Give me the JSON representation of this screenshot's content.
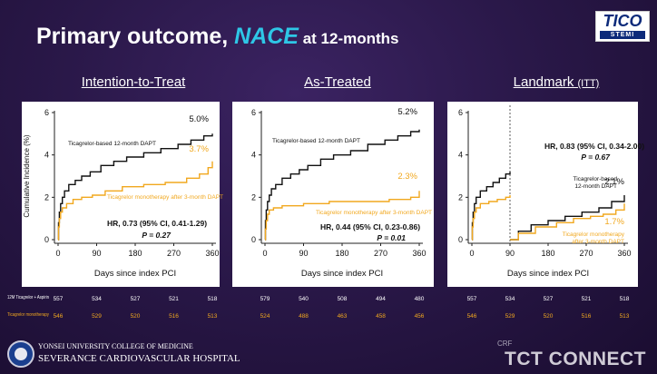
{
  "slide": {
    "title_main": "Primary outcome, ",
    "title_accent": "NACE",
    "title_suffix": " at 12-months",
    "logo_line1": "TICO",
    "logo_line2": "STEMI"
  },
  "panels": [
    {
      "title": "Intention-to-Treat",
      "subtitle": ""
    },
    {
      "title": "As-Treated",
      "subtitle": ""
    },
    {
      "title": "Landmark ",
      "subtitle": "(ITT)"
    }
  ],
  "colors": {
    "dapt": "#ffffff",
    "mono": "#f1a81f",
    "background": "#2a1849",
    "plot_bg": "#ffffff"
  },
  "footer": {
    "univ": "YONSEI UNIVERSITY COLLEGE OF MEDICINE",
    "hospital": "SEVERANCE CARDIOVASCULAR HOSPITAL",
    "crf": "CRF",
    "brand": "TCT CONNECT"
  },
  "risk_table": {
    "rows": [
      {
        "label": "12M Ticagrelor + Aspirin",
        "color": "#ffffff",
        "panels": [
          [
            "557",
            "534",
            "527",
            "521",
            "518"
          ],
          [
            "579",
            "540",
            "508",
            "494",
            "480"
          ],
          [
            "557",
            "534",
            "527",
            "521",
            "518"
          ]
        ]
      },
      {
        "label": "Ticagrelor monotherapy",
        "color": "#f1a81f",
        "panels": [
          [
            "546",
            "529",
            "520",
            "516",
            "513"
          ],
          [
            "524",
            "488",
            "463",
            "458",
            "456"
          ],
          [
            "546",
            "529",
            "520",
            "516",
            "513"
          ]
        ]
      }
    ]
  },
  "chart_data": [
    {
      "type": "line",
      "title": "Intention-to-Treat",
      "xlabel": "Days since index PCI",
      "ylabel": "Cumulative Incidence (%)",
      "xlim": [
        0,
        360
      ],
      "ylim": [
        0,
        6
      ],
      "xticks": [
        0,
        90,
        180,
        270,
        360
      ],
      "yticks": [
        0,
        2,
        4,
        6
      ],
      "series": [
        {
          "name": "Ticagrelor-based 12-month DAPT",
          "color": "#ffffff",
          "end_label": "5.0%",
          "x": [
            0,
            1,
            3,
            6,
            10,
            15,
            25,
            40,
            55,
            75,
            100,
            130,
            160,
            200,
            240,
            280,
            310,
            340,
            360
          ],
          "y": [
            0,
            0.8,
            1.3,
            1.7,
            2.0,
            2.3,
            2.6,
            2.8,
            3.0,
            3.2,
            3.5,
            3.7,
            3.9,
            4.1,
            4.3,
            4.5,
            4.7,
            4.9,
            5.0
          ]
        },
        {
          "name": "Ticagrelor monotherapy after 3-month DAPT",
          "color": "#f1a81f",
          "end_label": "3.7%",
          "x": [
            0,
            1,
            3,
            6,
            10,
            20,
            35,
            55,
            80,
            110,
            150,
            200,
            250,
            300,
            330,
            350,
            360
          ],
          "y": [
            0,
            0.6,
            1.0,
            1.3,
            1.5,
            1.7,
            1.9,
            2.0,
            2.1,
            2.3,
            2.5,
            2.6,
            2.7,
            2.9,
            3.1,
            3.4,
            3.7
          ]
        }
      ],
      "annotation": {
        "hr": "HR, 0.73 (95% CI, 0.41-1.29)",
        "p": "P = 0.27"
      }
    },
    {
      "type": "line",
      "title": "As-Treated",
      "xlabel": "Days since index PCI",
      "ylabel": "",
      "xlim": [
        0,
        360
      ],
      "ylim": [
        0,
        6
      ],
      "xticks": [
        0,
        90,
        180,
        270,
        360
      ],
      "yticks": [
        0,
        2,
        4,
        6
      ],
      "series": [
        {
          "name": "Ticagrelor-based 12-month DAPT",
          "color": "#ffffff",
          "end_label": "5.2%",
          "x": [
            0,
            1,
            3,
            6,
            10,
            15,
            25,
            40,
            60,
            80,
            100,
            130,
            160,
            200,
            240,
            280,
            310,
            340,
            360
          ],
          "y": [
            0,
            0.9,
            1.4,
            1.8,
            2.1,
            2.4,
            2.6,
            2.9,
            3.1,
            3.3,
            3.5,
            3.8,
            4.0,
            4.2,
            4.5,
            4.7,
            4.9,
            5.1,
            5.2
          ]
        },
        {
          "name": "Ticagrelor monotherapy after 3-month DAPT",
          "color": "#f1a81f",
          "end_label": "2.3%",
          "x": [
            0,
            1,
            3,
            6,
            10,
            20,
            40,
            60,
            90,
            150,
            220,
            290,
            340,
            360
          ],
          "y": [
            0,
            0.5,
            0.9,
            1.2,
            1.4,
            1.5,
            1.6,
            1.6,
            1.7,
            1.8,
            1.8,
            1.9,
            2.0,
            2.3
          ]
        }
      ],
      "annotation": {
        "hr": "HR, 0.44 (95% CI, 0.23-0.86)",
        "p": "P = 0.01"
      }
    },
    {
      "type": "line",
      "title": "Landmark (ITT)",
      "xlabel": "Days since index PCI",
      "ylabel": "",
      "xlim": [
        0,
        360
      ],
      "ylim": [
        0,
        6
      ],
      "xticks": [
        0,
        90,
        180,
        270,
        360
      ],
      "yticks": [
        0,
        2,
        4,
        6
      ],
      "landmark_day": 90,
      "series": [
        {
          "name": "Ticagrelor-based 12-month DAPT",
          "color": "#ffffff",
          "end_label": "",
          "x": [
            0,
            1,
            3,
            6,
            10,
            20,
            35,
            50,
            65,
            80,
            90
          ],
          "y": [
            0,
            0.8,
            1.3,
            1.7,
            2.0,
            2.3,
            2.5,
            2.7,
            2.9,
            3.1,
            3.2
          ]
        },
        {
          "name": "Ticagrelor monotherapy after 3-month DAPT",
          "color": "#f1a81f",
          "end_label": "",
          "x": [
            0,
            1,
            3,
            6,
            10,
            20,
            40,
            60,
            80,
            90
          ],
          "y": [
            0,
            0.6,
            1.0,
            1.3,
            1.5,
            1.7,
            1.8,
            1.9,
            2.0,
            2.1
          ]
        },
        {
          "name": "Ticagrelor-based 12-month DAPT",
          "color": "#ffffff",
          "end_label": "2.1%",
          "x": [
            90,
            110,
            140,
            180,
            220,
            260,
            300,
            330,
            360
          ],
          "y": [
            0,
            0.4,
            0.7,
            0.9,
            1.1,
            1.3,
            1.5,
            1.8,
            2.1
          ]
        },
        {
          "name": "Ticagrelor monotherapy after 3-month DAPT",
          "color": "#f1a81f",
          "end_label": "1.7%",
          "x": [
            90,
            110,
            150,
            200,
            240,
            280,
            310,
            340,
            360
          ],
          "y": [
            0,
            0.3,
            0.6,
            0.8,
            1.0,
            1.1,
            1.2,
            1.4,
            1.7
          ]
        }
      ],
      "annotation": {
        "hr": "HR, 0.83 (95% CI, 0.34-2.00)",
        "p": "P = 0.67"
      }
    }
  ]
}
